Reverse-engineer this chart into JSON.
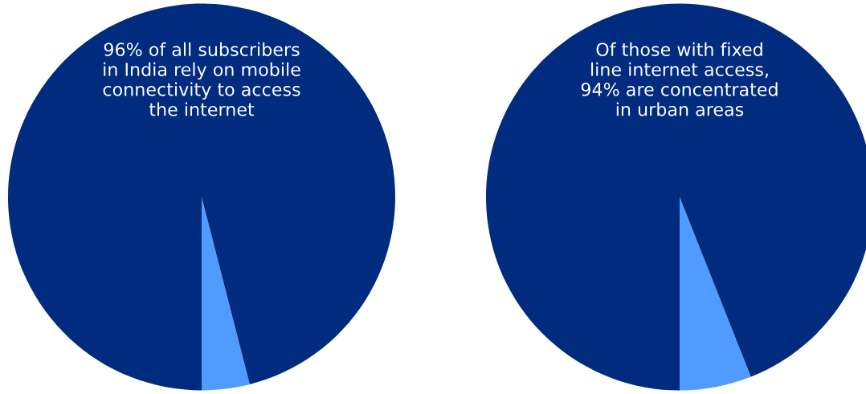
{
  "chart_data": [
    {
      "type": "pie",
      "categories": [
        null,
        null
      ],
      "values": [
        4,
        96
      ],
      "colors": [
        "#4f9bff",
        "#002b7f"
      ],
      "annotations": [
        "96% of all subscribers\nin India rely on mobile\nconnectivity to access\nthe internet"
      ]
    },
    {
      "type": "pie",
      "categories": [
        null,
        null
      ],
      "values": [
        6,
        94
      ],
      "colors": [
        "#4f9bff",
        "#002b7f"
      ],
      "annotations": [
        "Of those with fixed\nline internet access,\n94% are concentrated\nin urban areas"
      ]
    }
  ]
}
